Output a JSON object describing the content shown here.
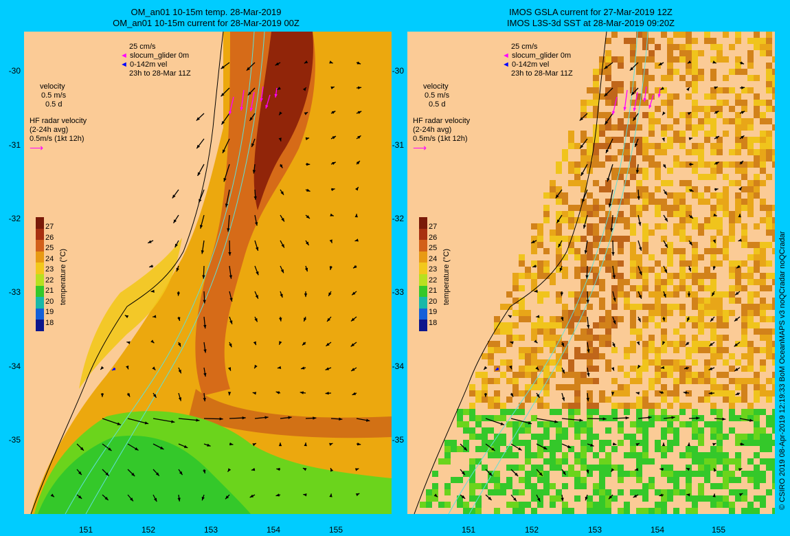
{
  "left": {
    "title1": "OM_an01 10-15m temp. 28-Mar-2019",
    "title2": "OM_an01 10-15m current for 28-Mar-2019 00Z"
  },
  "right": {
    "title1": "IMOS GSLA current for 27-Mar-2019 12Z",
    "title2": "IMOS L3S-3d SST at 28-Mar-2019 09:20Z"
  },
  "legend": {
    "scale": "25 cm/s",
    "glider": "slocum_glider 0m",
    "vel": "0-142m vel",
    "window": "23h to 28-Mar 11Z",
    "velocity": "velocity",
    "vel_scale": "0.5 m/s",
    "vel_time": "0.5 d",
    "hf1": "HF radar velocity",
    "hf2": "(2-24h avg)",
    "hf3": "0.5m/s (1kt 12h)"
  },
  "colorbar": {
    "title": "temperature (°C)",
    "ticks": [
      "27",
      "26",
      "25",
      "24",
      "23",
      "22",
      "21",
      "20",
      "19",
      "18"
    ],
    "colors": [
      "#7a1a08",
      "#a83010",
      "#d2601a",
      "#e89a14",
      "#f2c81c",
      "#b8e020",
      "#34c82a",
      "#19b8a8",
      "#1560d8",
      "#0c168c"
    ]
  },
  "axes": {
    "y": [
      "-30",
      "-31",
      "-32",
      "-33",
      "-34",
      "-35"
    ],
    "x": [
      "151",
      "152",
      "153",
      "154",
      "155"
    ]
  },
  "credit": "© CSIRO 2019    08-Apr-2019 12:19:33 BoM OceanMAPS v3 noQCradar noQCradar",
  "colors": {
    "background": "#00CCFF",
    "land": "#FBCB96",
    "glider": "#FF00FF",
    "hf": "#FF00FF",
    "vel": "#0000FF"
  }
}
